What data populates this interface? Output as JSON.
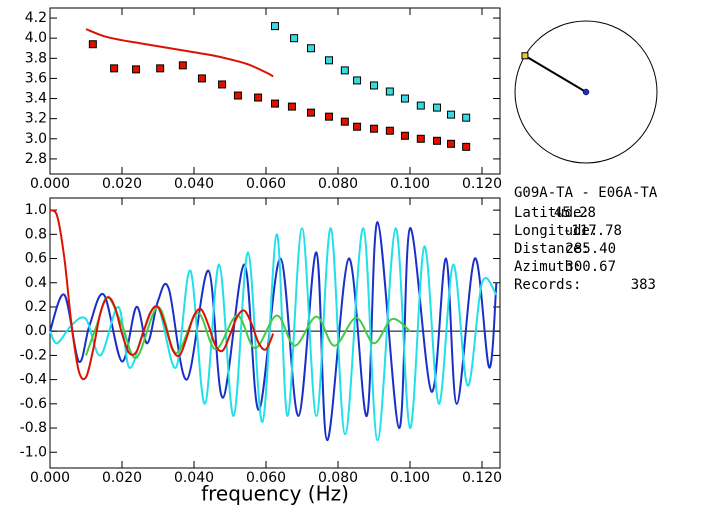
{
  "chart_data": [
    {
      "type": "scatter",
      "xlim": [
        0,
        0.125
      ],
      "ylim": [
        2.65,
        4.3
      ],
      "xticks": [
        {
          "value": 0,
          "label": "0.000"
        },
        {
          "value": 0.02,
          "label": "0.020"
        },
        {
          "value": 0.04,
          "label": "0.040"
        },
        {
          "value": 0.06,
          "label": "0.060"
        },
        {
          "value": 0.08,
          "label": "0.080"
        },
        {
          "value": 0.1,
          "label": "0.100"
        },
        {
          "value": 0.12,
          "label": "0.120"
        }
      ],
      "yticks": [
        2.8,
        {
          "value": 3,
          "label": "3.0"
        },
        3.2,
        3.4,
        3.6,
        3.8,
        {
          "value": 4,
          "label": "4.0"
        },
        4.2
      ],
      "series": [
        {
          "mode": "line",
          "color": "#dd1100",
          "x": [
            0.01,
            0.015,
            0.02,
            0.025,
            0.03,
            0.035,
            0.04,
            0.045,
            0.05,
            0.055,
            0.06,
            0.062
          ],
          "values": [
            4.09,
            4.02,
            3.98,
            3.95,
            3.92,
            3.89,
            3.86,
            3.83,
            3.79,
            3.74,
            3.66,
            3.62
          ]
        },
        {
          "mode": "markers",
          "color": "#dd1100",
          "x": [
            0.0119,
            0.0178,
            0.0239,
            0.0306,
            0.0369,
            0.0422,
            0.0478,
            0.0522,
            0.0578,
            0.0625,
            0.0672,
            0.0725,
            0.0775,
            0.0819,
            0.0853,
            0.09,
            0.0944,
            0.0986,
            0.103,
            0.1075,
            0.1114,
            0.1156
          ],
          "values": [
            3.94,
            3.7,
            3.69,
            3.7,
            3.73,
            3.6,
            3.54,
            3.43,
            3.41,
            3.35,
            3.32,
            3.26,
            3.22,
            3.17,
            3.12,
            3.1,
            3.08,
            3.03,
            3.0,
            2.98,
            2.95,
            2.92
          ]
        },
        {
          "mode": "markers",
          "color": "#33dddd",
          "x": [
            0.0625,
            0.0678,
            0.0725,
            0.0775,
            0.0819,
            0.0853,
            0.09,
            0.0944,
            0.0986,
            0.103,
            0.1075,
            0.1114,
            0.1156
          ],
          "values": [
            4.12,
            4.0,
            3.9,
            3.78,
            3.68,
            3.58,
            3.53,
            3.47,
            3.4,
            3.33,
            3.31,
            3.24,
            3.21
          ]
        }
      ]
    },
    {
      "type": "line",
      "xlabel": "frequency (Hz)",
      "xlim": [
        0,
        0.125
      ],
      "ylim": [
        -1.13,
        1.1
      ],
      "xticks": [
        {
          "value": 0,
          "label": "0.000"
        },
        {
          "value": 0.02,
          "label": "0.020"
        },
        {
          "value": 0.04,
          "label": "0.040"
        },
        {
          "value": 0.06,
          "label": "0.060"
        },
        {
          "value": 0.08,
          "label": "0.080"
        },
        {
          "value": 0.1,
          "label": "0.100"
        },
        {
          "value": 0.12,
          "label": "0.120"
        }
      ],
      "yticks": [
        {
          "value": -1,
          "label": "-1.0"
        },
        -0.8,
        -0.6,
        -0.4,
        -0.2,
        {
          "value": 0,
          "label": "0.0"
        },
        0.2,
        0.4,
        0.6,
        0.8,
        {
          "value": 1,
          "label": "1.0"
        }
      ],
      "reference_line": 0,
      "series": [
        {
          "mode": "line",
          "color": "#1a2fc8",
          "x": [
            0,
            0.004,
            0.008,
            0.011,
            0.015,
            0.02,
            0.024,
            0.027,
            0.03,
            0.033,
            0.038,
            0.044,
            0.048,
            0.054,
            0.058,
            0.064,
            0.069,
            0.074,
            0.077,
            0.083,
            0.088,
            0.091,
            0.097,
            0.1,
            0.106,
            0.11,
            0.113,
            0.118,
            0.122,
            0.124
          ],
          "values": [
            0.0,
            0.3,
            -0.25,
            0.05,
            0.3,
            -0.25,
            0.2,
            -0.1,
            0.25,
            0.35,
            -0.4,
            0.5,
            -0.55,
            0.55,
            -0.65,
            0.6,
            -0.7,
            0.65,
            -0.9,
            0.6,
            -0.7,
            0.9,
            -0.8,
            0.85,
            -0.5,
            0.6,
            -0.6,
            0.6,
            -0.3,
            0.4
          ]
        },
        {
          "mode": "line",
          "color": "#22e0e8",
          "x": [
            0,
            0.002,
            0.006,
            0.01,
            0.014,
            0.019,
            0.022,
            0.026,
            0.03,
            0.035,
            0.039,
            0.043,
            0.047,
            0.051,
            0.055,
            0.059,
            0.063,
            0.066,
            0.07,
            0.074,
            0.078,
            0.082,
            0.087,
            0.091,
            0.096,
            0.1,
            0.104,
            0.108,
            0.112,
            0.116,
            0.12,
            0.124
          ],
          "values": [
            0.0,
            -0.1,
            0.05,
            0.1,
            -0.2,
            0.2,
            -0.3,
            0.0,
            0.2,
            -0.3,
            0.5,
            -0.6,
            0.55,
            -0.7,
            0.65,
            -0.75,
            0.8,
            -0.7,
            0.85,
            -0.7,
            0.85,
            -0.85,
            0.85,
            -0.9,
            0.85,
            -0.8,
            0.7,
            -0.6,
            0.55,
            -0.45,
            0.4,
            0.3
          ]
        },
        {
          "mode": "line",
          "color": "#44cc44",
          "x": [
            0.01,
            0.013,
            0.016,
            0.02,
            0.024,
            0.03,
            0.035,
            0.041,
            0.046,
            0.052,
            0.057,
            0.063,
            0.068,
            0.074,
            0.079,
            0.085,
            0.09,
            0.095,
            0.1
          ],
          "values": [
            -0.2,
            0.05,
            0.28,
            0.05,
            -0.22,
            0.2,
            -0.18,
            0.15,
            -0.15,
            0.13,
            -0.14,
            0.13,
            -0.12,
            0.12,
            -0.12,
            0.11,
            -0.1,
            0.1,
            0.0
          ]
        },
        {
          "mode": "line",
          "color": "#dd1100",
          "x": [
            0,
            0.002,
            0.004,
            0.006,
            0.008,
            0.01,
            0.012,
            0.014,
            0.016,
            0.018,
            0.02,
            0.022,
            0.024,
            0.026,
            0.028,
            0.03,
            0.032,
            0.034,
            0.036,
            0.038,
            0.04,
            0.042,
            0.044,
            0.046,
            0.048,
            0.05,
            0.052,
            0.054,
            0.056,
            0.058,
            0.06,
            0.062
          ],
          "values": [
            1.0,
            0.95,
            0.6,
            0.05,
            -0.33,
            -0.38,
            -0.15,
            0.15,
            0.28,
            0.2,
            -0.02,
            -0.18,
            -0.17,
            0.0,
            0.16,
            0.2,
            0.05,
            -0.15,
            -0.2,
            -0.05,
            0.13,
            0.18,
            0.05,
            -0.12,
            -0.16,
            -0.03,
            0.12,
            0.17,
            0.06,
            -0.1,
            -0.15,
            -0.02
          ]
        }
      ]
    }
  ],
  "station": {
    "pair": "G09A-TA - E06A-TA",
    "fields": [
      {
        "label": "Latitude:",
        "value": 45.28
      },
      {
        "label": "Longitude:",
        "value": -117.78
      },
      {
        "label": "Distance:",
        "value": "285.40"
      },
      {
        "label": "Azimuth:",
        "value": 300.67
      },
      {
        "label": "Records:",
        "value": 383
      }
    ]
  }
}
